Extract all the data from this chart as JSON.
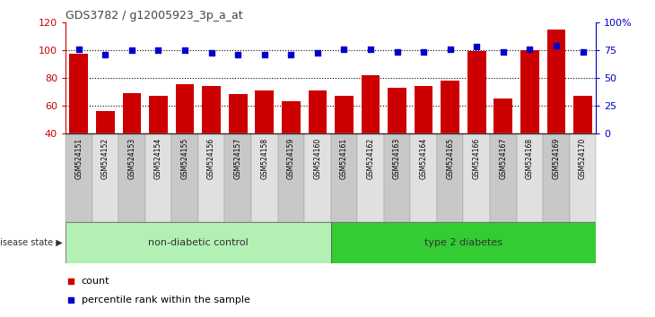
{
  "title": "GDS3782 / g12005923_3p_a_at",
  "samples": [
    "GSM524151",
    "GSM524152",
    "GSM524153",
    "GSM524154",
    "GSM524155",
    "GSM524156",
    "GSM524157",
    "GSM524158",
    "GSM524159",
    "GSM524160",
    "GSM524161",
    "GSM524162",
    "GSM524163",
    "GSM524164",
    "GSM524165",
    "GSM524166",
    "GSM524167",
    "GSM524168",
    "GSM524169",
    "GSM524170"
  ],
  "counts": [
    97,
    56,
    69,
    67,
    75,
    74,
    68,
    71,
    63,
    71,
    67,
    82,
    73,
    74,
    78,
    99,
    65,
    100,
    115,
    67
  ],
  "percentile_ranks": [
    76,
    71,
    75,
    75,
    75,
    72,
    71,
    71,
    71,
    72,
    76,
    76,
    73,
    73,
    76,
    78,
    73,
    76,
    79,
    73
  ],
  "non_diabetic_count": 10,
  "type2_diabetes_count": 10,
  "ylim_left": [
    40,
    120
  ],
  "ylim_right": [
    0,
    100
  ],
  "yticks_left": [
    40,
    60,
    80,
    100,
    120
  ],
  "yticks_right": [
    0,
    25,
    50,
    75,
    100
  ],
  "ytick_labels_right": [
    "0",
    "25",
    "50",
    "75",
    "100%"
  ],
  "bar_color": "#cc0000",
  "dot_color": "#0000cc",
  "non_diabetic_color": "#b3f0b3",
  "type2_color": "#33cc33",
  "legend_count_label": "count",
  "legend_pct_label": "percentile rank within the sample",
  "disease_state_label": "disease state",
  "non_diabetic_label": "non-diabetic control",
  "type2_label": "type 2 diabetes",
  "axis_color_left": "#cc0000",
  "axis_color_right": "#0000cc",
  "tick_bg_even": "#c8c8c8",
  "tick_bg_odd": "#e0e0e0"
}
